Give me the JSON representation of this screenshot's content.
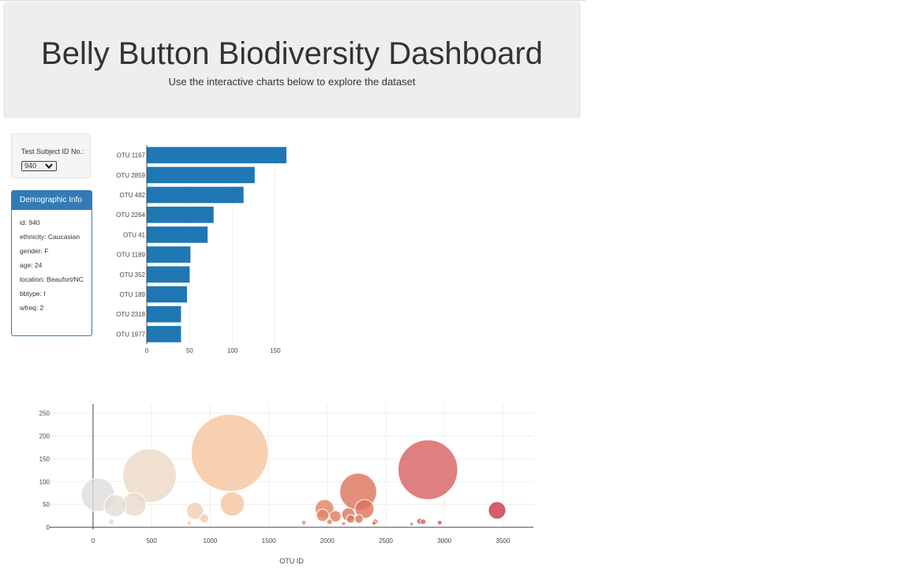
{
  "header": {
    "title": "Belly Button Biodiversity Dashboard",
    "subtitle": "Use the interactive charts below to explore the dataset"
  },
  "selector": {
    "label": "Test Subject ID No.:",
    "selected": "940"
  },
  "demographics": {
    "heading": "Demographic Info",
    "lines": [
      "id: 940",
      "ethnicity: Caucasian",
      "gender: F",
      "age: 24",
      "location: Beaufort/NC",
      "bbtype: I",
      "wfreq: 2"
    ]
  },
  "colors": {
    "bar": "#1f77b4",
    "panel": "#337ab7",
    "jumbotron": "#eeeeee"
  },
  "chart_data": [
    {
      "type": "bar",
      "orientation": "horizontal",
      "categories": [
        "OTU 1167",
        "OTU 2859",
        "OTU 482",
        "OTU 2264",
        "OTU 41",
        "OTU 1189",
        "OTU 352",
        "OTU 189",
        "OTU 2318",
        "OTU 1977"
      ],
      "values": [
        163,
        126,
        113,
        78,
        71,
        51,
        50,
        47,
        40,
        40
      ],
      "xticks": [
        "0",
        "50",
        "100",
        "150"
      ],
      "xlim": [
        0,
        163
      ],
      "title": "",
      "xlabel": "",
      "ylabel": ""
    },
    {
      "type": "scatter",
      "subtype": "bubble",
      "xlabel": "OTU ID",
      "ylabel": "",
      "xlim": [
        -370,
        3760
      ],
      "ylim": [
        -5,
        270
      ],
      "xticks": [
        0,
        500,
        1000,
        1500,
        2000,
        2500,
        3000,
        3500
      ],
      "yticks": [
        0,
        50,
        100,
        150,
        200,
        250
      ],
      "colorscale": "Earth",
      "points": [
        {
          "x": 41,
          "y": 71
        },
        {
          "x": 189,
          "y": 47
        },
        {
          "x": 352,
          "y": 50
        },
        {
          "x": 482,
          "y": 113
        },
        {
          "x": 1167,
          "y": 163
        },
        {
          "x": 870,
          "y": 36
        },
        {
          "x": 950,
          "y": 19
        },
        {
          "x": 1189,
          "y": 51
        },
        {
          "x": 1977,
          "y": 40
        },
        {
          "x": 1960,
          "y": 26
        },
        {
          "x": 2070,
          "y": 24
        },
        {
          "x": 2264,
          "y": 78
        },
        {
          "x": 2318,
          "y": 40
        },
        {
          "x": 2180,
          "y": 28
        },
        {
          "x": 2270,
          "y": 18
        },
        {
          "x": 2200,
          "y": 18
        },
        {
          "x": 2859,
          "y": 126
        },
        {
          "x": 3450,
          "y": 37
        },
        {
          "x": 155,
          "y": 12
        },
        {
          "x": 820,
          "y": 9
        },
        {
          "x": 1800,
          "y": 10
        },
        {
          "x": 2020,
          "y": 12
        },
        {
          "x": 2410,
          "y": 12
        },
        {
          "x": 2790,
          "y": 13
        },
        {
          "x": 2820,
          "y": 12
        },
        {
          "x": 2960,
          "y": 10
        },
        {
          "x": 2720,
          "y": 7
        },
        {
          "x": 2140,
          "y": 8
        },
        {
          "x": 2400,
          "y": 9
        }
      ]
    }
  ]
}
